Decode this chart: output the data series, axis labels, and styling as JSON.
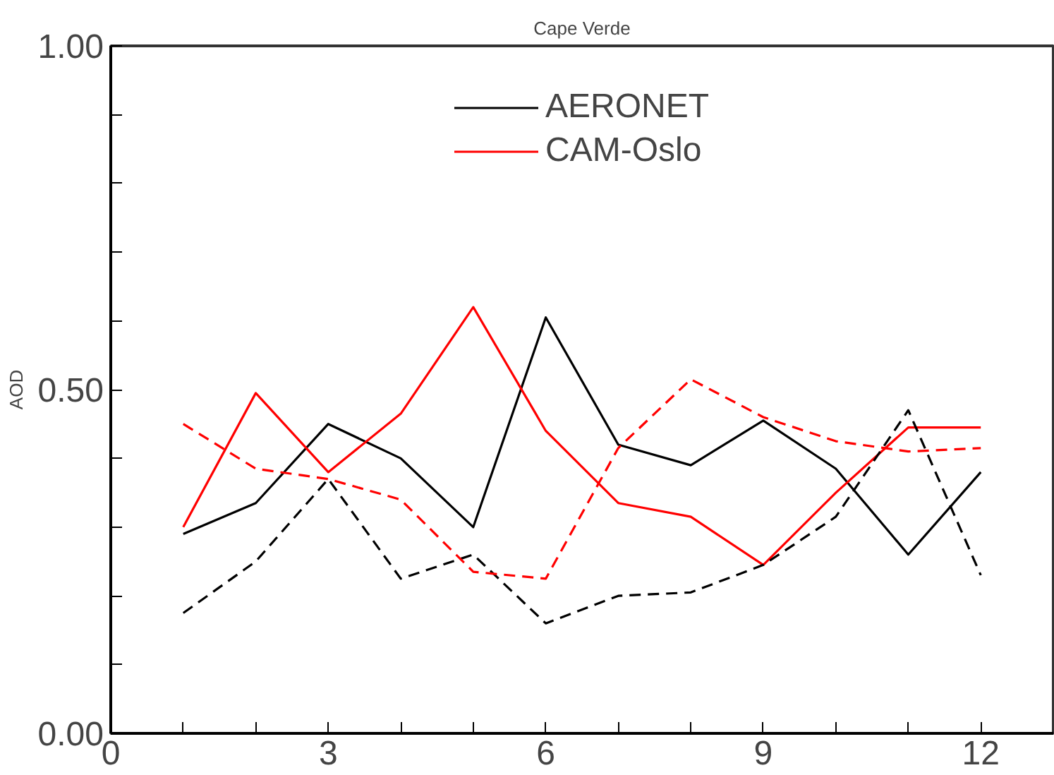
{
  "chart_data": {
    "type": "line",
    "title": "Cape Verde",
    "ylabel": "AOD",
    "x": [
      1,
      2,
      3,
      4,
      5,
      6,
      7,
      8,
      9,
      10,
      11,
      12
    ],
    "series": [
      {
        "name": "AERONET",
        "color": "#000000",
        "line_style": "solid",
        "values": [
          0.29,
          0.335,
          0.45,
          0.4,
          0.3,
          0.605,
          0.42,
          0.39,
          0.455,
          0.385,
          0.26,
          0.38
        ]
      },
      {
        "name": "CAM-Oslo",
        "color": "#ff0000",
        "line_style": "solid",
        "values": [
          0.3,
          0.495,
          0.38,
          0.465,
          0.62,
          0.44,
          0.335,
          0.315,
          0.245,
          0.35,
          0.445,
          0.445
        ]
      },
      {
        "color": "#000000",
        "line_style": "dashed",
        "values": [
          0.175,
          0.25,
          0.37,
          0.225,
          0.26,
          0.16,
          0.2,
          0.205,
          0.245,
          0.315,
          0.47,
          0.23
        ]
      },
      {
        "color": "#ff0000",
        "line_style": "dashed",
        "values": [
          0.45,
          0.385,
          0.37,
          0.34,
          0.235,
          0.225,
          0.415,
          0.515,
          0.46,
          0.425,
          0.41,
          0.415
        ]
      }
    ],
    "xlim": [
      0,
      13
    ],
    "ylim": [
      0,
      1
    ],
    "xticks": [
      0,
      {
        "value": 1,
        "label": null
      },
      {
        "value": 2,
        "label": null
      },
      3,
      {
        "value": 4,
        "label": null
      },
      {
        "value": 5,
        "label": null
      },
      6,
      {
        "value": 7,
        "label": null
      },
      {
        "value": 8,
        "label": null
      },
      9,
      {
        "value": 10,
        "label": null
      },
      {
        "value": 11,
        "label": null
      },
      12
    ],
    "yticks": [
      {
        "value": 0,
        "label": "0.00"
      },
      {
        "value": 0.1,
        "label": null
      },
      {
        "value": 0.2,
        "label": null
      },
      {
        "value": 0.3,
        "label": null
      },
      {
        "value": 0.4,
        "label": null
      },
      {
        "value": 0.5,
        "label": "0.50"
      },
      {
        "value": 0.6,
        "label": null
      },
      {
        "value": 0.7,
        "label": null
      },
      {
        "value": 0.8,
        "label": null
      },
      {
        "value": 0.9,
        "label": null
      },
      {
        "value": 1,
        "label": "1.00"
      }
    ],
    "legend": "top",
    "grid": false,
    "marker": "none"
  }
}
